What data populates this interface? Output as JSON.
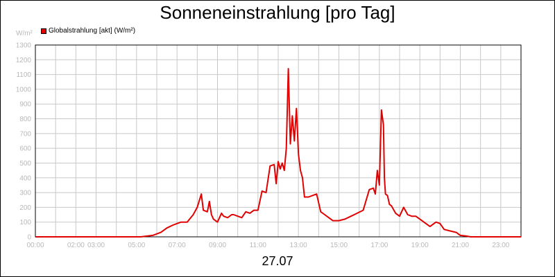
{
  "chart_data": {
    "type": "line",
    "title": "Sonneneinstrahlung [pro Tag]",
    "ylabel": "W/m²",
    "xlabel": "27.07",
    "ylim": [
      0,
      1300
    ],
    "xlim": [
      0,
      24
    ],
    "grid": true,
    "legend_position": "top-left",
    "yticks": [
      0,
      100,
      200,
      300,
      400,
      500,
      600,
      700,
      800,
      900,
      1000,
      1100,
      1200,
      1300
    ],
    "xticks": [
      {
        "x": 0,
        "label": "00:00"
      },
      {
        "x": 2,
        "label": "02:00"
      },
      {
        "x": 3,
        "label": "03:00"
      },
      {
        "x": 5,
        "label": "05:00"
      },
      {
        "x": 7,
        "label": "07:00"
      },
      {
        "x": 9,
        "label": "09:00"
      },
      {
        "x": 11,
        "label": "11:00"
      },
      {
        "x": 13,
        "label": "13:00"
      },
      {
        "x": 15,
        "label": "15:00"
      },
      {
        "x": 17,
        "label": "17:00"
      },
      {
        "x": 19,
        "label": "19:00"
      },
      {
        "x": 21,
        "label": "21:00"
      },
      {
        "x": 23,
        "label": "23:00"
      }
    ],
    "series": [
      {
        "name": "Globalstrahlung [akt] (W/m²)",
        "color": "#e00000",
        "x": [
          0,
          5.2,
          5.8,
          6.2,
          6.5,
          6.8,
          7.0,
          7.2,
          7.5,
          7.8,
          8.0,
          8.2,
          8.3,
          8.5,
          8.6,
          8.7,
          8.8,
          9.0,
          9.2,
          9.3,
          9.5,
          9.7,
          9.8,
          10.0,
          10.2,
          10.4,
          10.6,
          10.8,
          11.0,
          11.2,
          11.4,
          11.6,
          11.8,
          11.9,
          12.0,
          12.1,
          12.2,
          12.3,
          12.4,
          12.5,
          12.6,
          12.7,
          12.8,
          12.9,
          13.0,
          13.1,
          13.2,
          13.3,
          13.5,
          13.7,
          13.9,
          14.1,
          14.3,
          14.5,
          14.7,
          15.0,
          15.3,
          15.6,
          15.9,
          16.2,
          16.5,
          16.7,
          16.8,
          16.9,
          17.0,
          17.1,
          17.2,
          17.25,
          17.3,
          17.4,
          17.5,
          17.6,
          17.8,
          18.0,
          18.2,
          18.4,
          18.6,
          18.8,
          19.0,
          19.2,
          19.5,
          19.8,
          20.0,
          20.2,
          20.5,
          20.8,
          21.0,
          21.3,
          21.5,
          24.0
        ],
        "values": [
          0,
          0,
          10,
          30,
          60,
          80,
          90,
          100,
          100,
          150,
          200,
          290,
          180,
          170,
          240,
          150,
          120,
          100,
          160,
          140,
          130,
          150,
          150,
          140,
          130,
          170,
          160,
          180,
          180,
          310,
          300,
          480,
          490,
          360,
          510,
          460,
          500,
          450,
          600,
          1140,
          630,
          820,
          650,
          870,
          560,
          450,
          400,
          270,
          270,
          280,
          290,
          170,
          150,
          130,
          110,
          110,
          120,
          140,
          160,
          180,
          320,
          330,
          290,
          450,
          350,
          860,
          760,
          400,
          290,
          280,
          220,
          210,
          160,
          140,
          200,
          150,
          140,
          140,
          120,
          100,
          70,
          100,
          90,
          50,
          40,
          30,
          10,
          5,
          0,
          0
        ]
      }
    ]
  }
}
